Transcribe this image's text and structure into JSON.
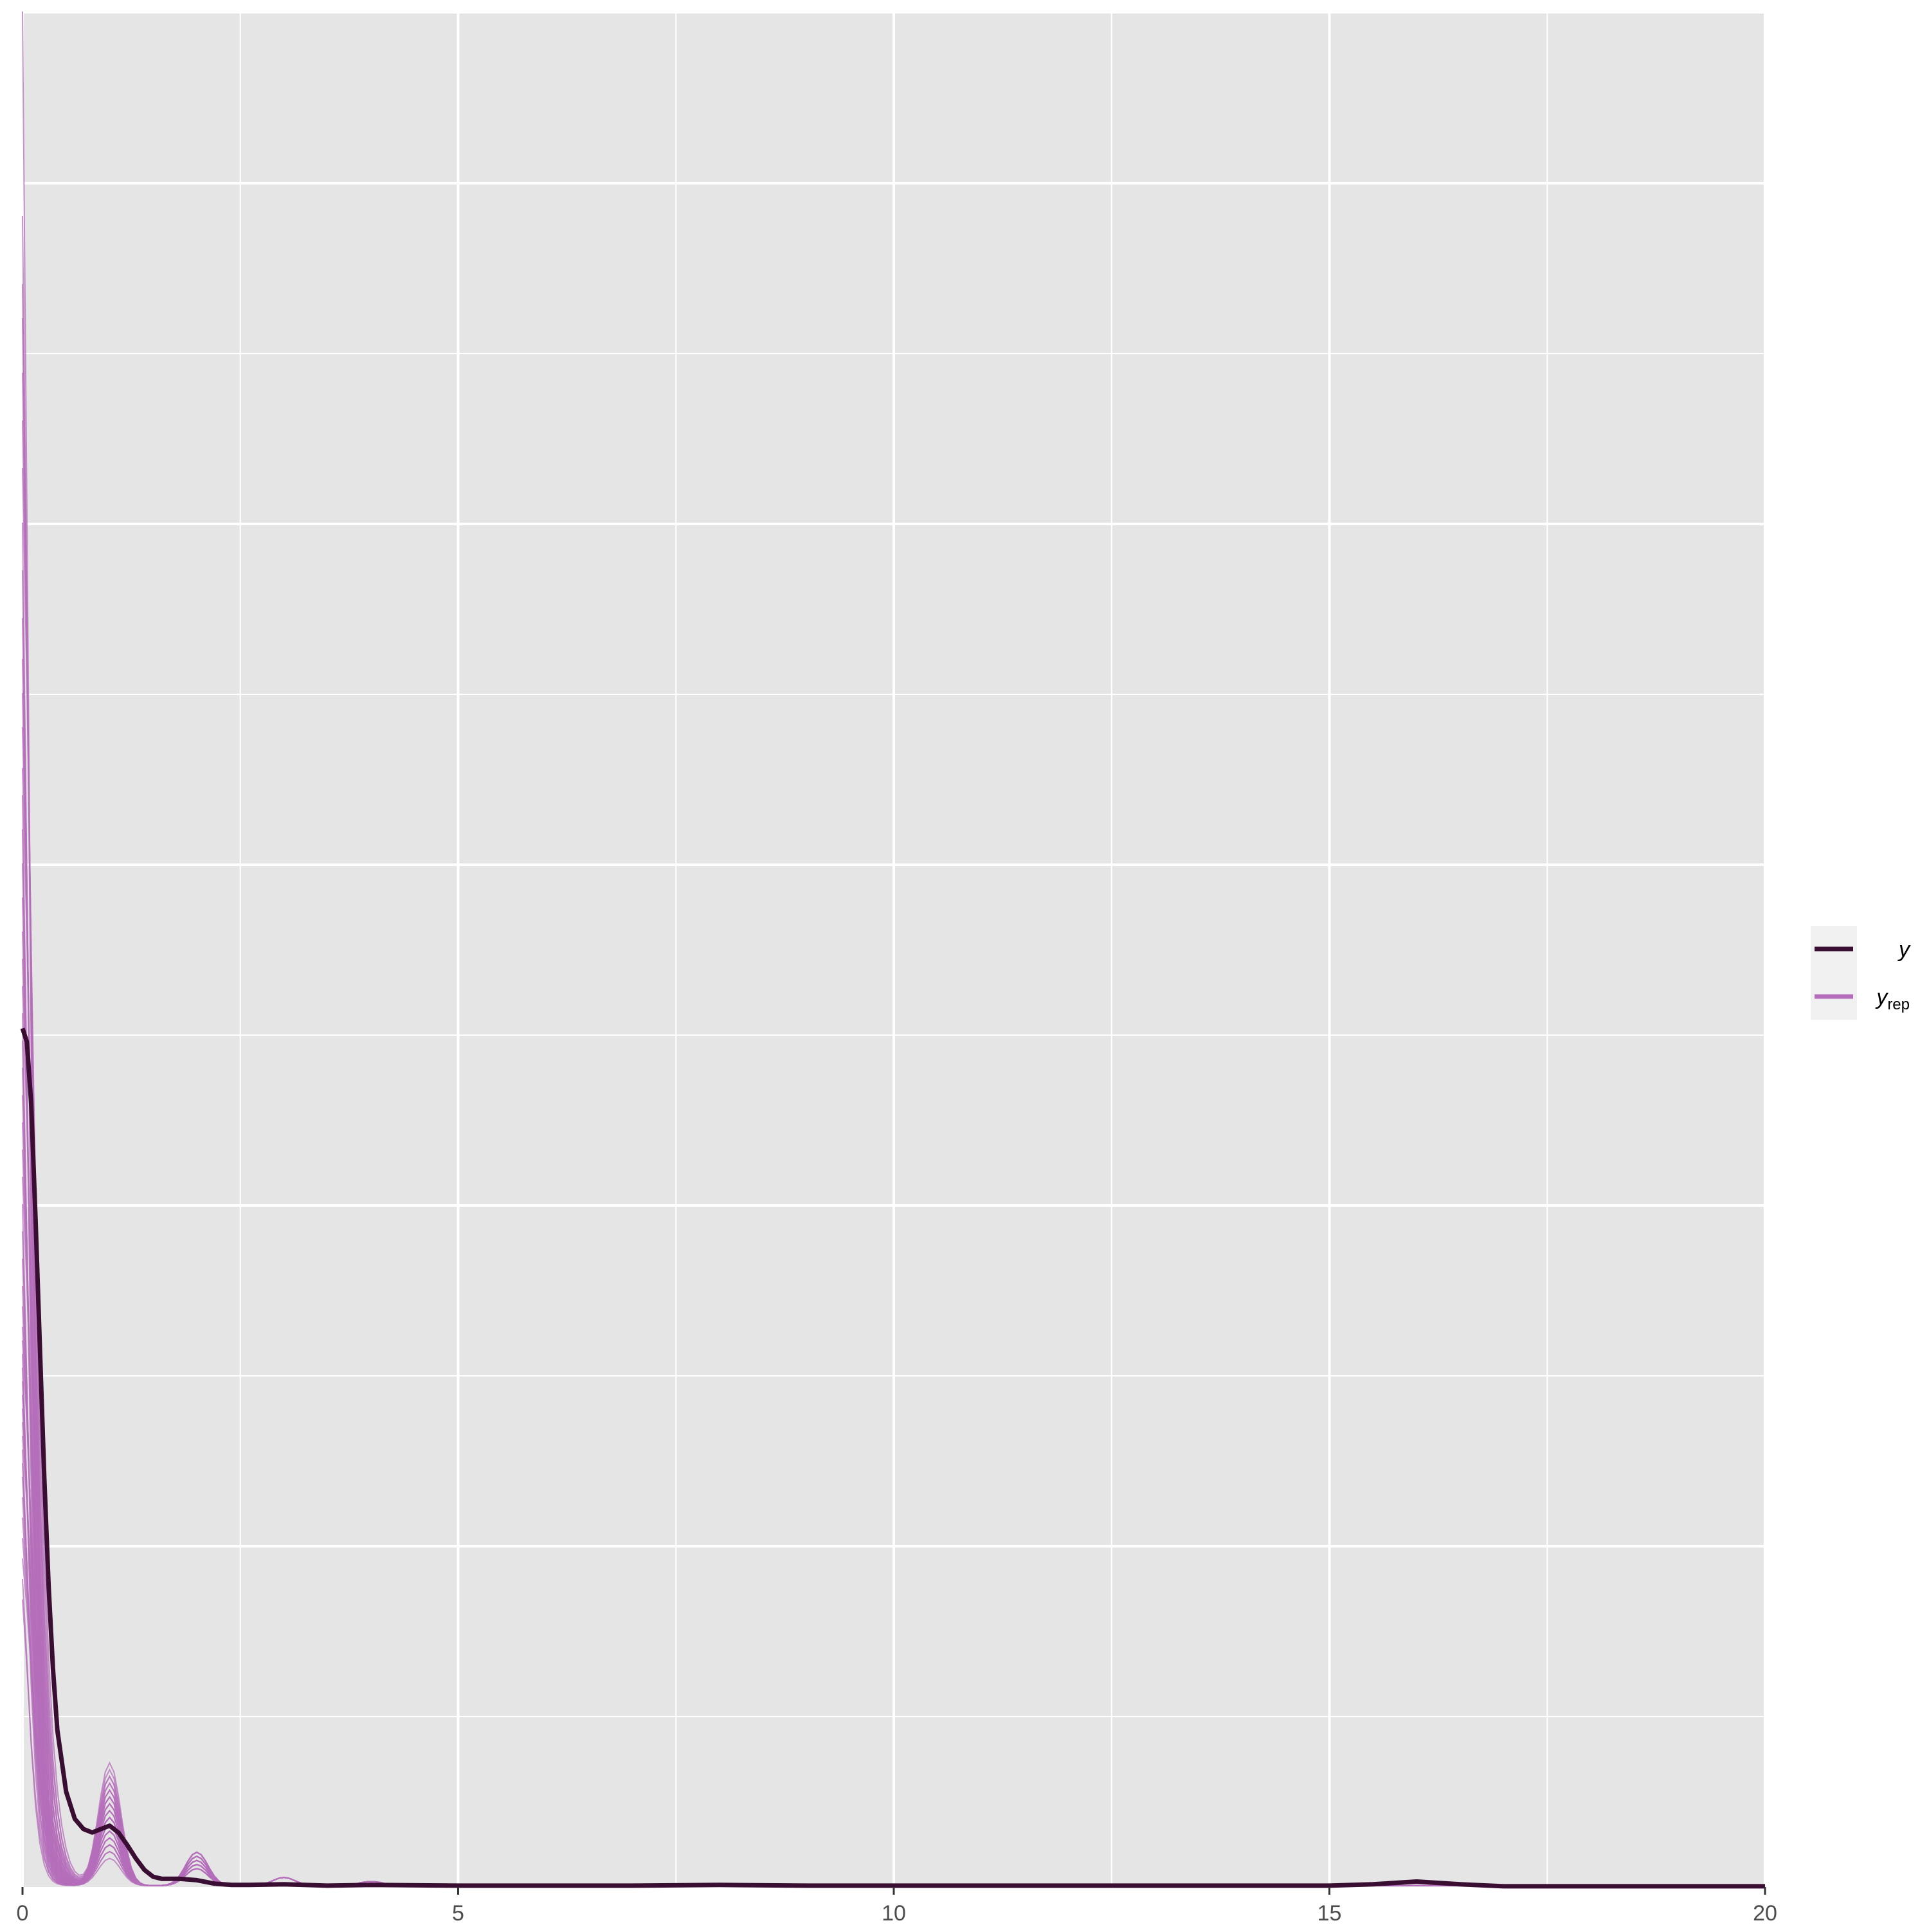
{
  "chart_data": {
    "type": "line",
    "title": "",
    "xlabel": "",
    "ylabel": "",
    "xlim": [
      0,
      20
    ],
    "ylim": [
      0,
      2.75
    ],
    "x_ticks": [
      0,
      5,
      10,
      15,
      20
    ],
    "x_tick_labels": [
      "0",
      "5",
      "10",
      "15",
      "20"
    ],
    "grid": true,
    "legend_position": "right",
    "colors": {
      "panel_background": "#e5e5e5",
      "grid": "#ffffff",
      "y": "#3a0d33",
      "yrep": "#b46dba",
      "legend_background": "#f0f0f0"
    },
    "legend": [
      {
        "key": "y",
        "label_main": "y",
        "label_sub": ""
      },
      {
        "key": "yrep",
        "label_main": "y",
        "label_sub": "rep"
      }
    ],
    "series": [
      {
        "name": "y",
        "x": [
          0.0,
          0.05,
          0.1,
          0.15,
          0.2,
          0.25,
          0.3,
          0.35,
          0.4,
          0.5,
          0.6,
          0.7,
          0.8,
          0.9,
          1.0,
          1.1,
          1.2,
          1.3,
          1.4,
          1.5,
          1.6,
          1.8,
          2.0,
          2.2,
          2.4,
          2.6,
          3.0,
          3.5,
          4.0,
          5.0,
          6.0,
          7.0,
          8.0,
          9.0,
          10.0,
          11.0,
          12.0,
          13.0,
          14.0,
          15.0,
          15.5,
          16.0,
          16.5,
          17.0,
          18.0,
          19.0,
          20.0
        ],
        "values": [
          1.26,
          1.24,
          1.15,
          0.98,
          0.79,
          0.6,
          0.44,
          0.32,
          0.23,
          0.14,
          0.1,
          0.085,
          0.08,
          0.085,
          0.09,
          0.08,
          0.062,
          0.042,
          0.025,
          0.015,
          0.012,
          0.012,
          0.01,
          0.005,
          0.003,
          0.003,
          0.004,
          0.002,
          0.003,
          0.002,
          0.002,
          0.002,
          0.003,
          0.002,
          0.002,
          0.002,
          0.002,
          0.002,
          0.002,
          0.002,
          0.004,
          0.008,
          0.004,
          0.001,
          0.001,
          0.001,
          0.001
        ]
      }
    ],
    "yrep_draws": {
      "name": "yrep",
      "x": [
        0.0,
        0.05,
        0.1,
        0.15,
        0.2,
        0.25,
        0.3,
        0.35,
        0.4,
        0.5,
        0.6,
        0.7,
        0.8,
        0.9,
        1.0,
        1.1,
        1.2,
        1.3,
        1.4,
        1.5,
        1.6,
        1.8,
        2.0,
        2.2,
        2.4,
        2.6,
        3.0,
        3.5,
        4.0,
        5.0,
        6.0,
        7.0,
        8.0,
        9.0,
        10.0,
        11.0,
        12.0,
        13.0,
        14.0,
        15.0,
        15.5,
        16.0,
        16.5,
        17.0,
        18.0,
        19.0,
        20.0
      ],
      "peaks": [
        2.75,
        2.45,
        2.35,
        2.3,
        2.22,
        2.15,
        2.08,
        2.0,
        1.93,
        1.86,
        1.8,
        1.75,
        1.7,
        1.64,
        1.6,
        1.55,
        1.5,
        1.45,
        1.4,
        1.36,
        1.32,
        1.28,
        1.24,
        1.2,
        1.16,
        1.12,
        1.08,
        1.04,
        1.0,
        0.96,
        0.92,
        0.88,
        0.85,
        0.82,
        0.8,
        0.78,
        0.76,
        0.74,
        0.72,
        0.7,
        0.68,
        0.66,
        0.64,
        0.62,
        0.6,
        0.57,
        0.54,
        0.51,
        0.48,
        0.45,
        0.42
      ],
      "bumps": [
        0.04,
        0.06,
        0.08,
        0.1,
        0.12,
        0.14,
        0.16,
        0.18,
        0.06,
        0.09,
        0.11,
        0.13,
        0.07,
        0.15,
        0.1,
        0.05,
        0.12,
        0.08,
        0.17,
        0.09,
        0.11,
        0.06,
        0.14,
        0.1,
        0.08,
        0.13,
        0.07,
        0.12,
        0.09,
        0.16,
        0.1,
        0.05,
        0.11,
        0.08,
        0.13,
        0.06,
        0.12,
        0.09,
        0.15,
        0.1,
        0.07,
        0.12,
        0.08,
        0.14,
        0.1,
        0.06,
        0.11,
        0.09,
        0.13,
        0.07,
        0.1
      ]
    }
  }
}
